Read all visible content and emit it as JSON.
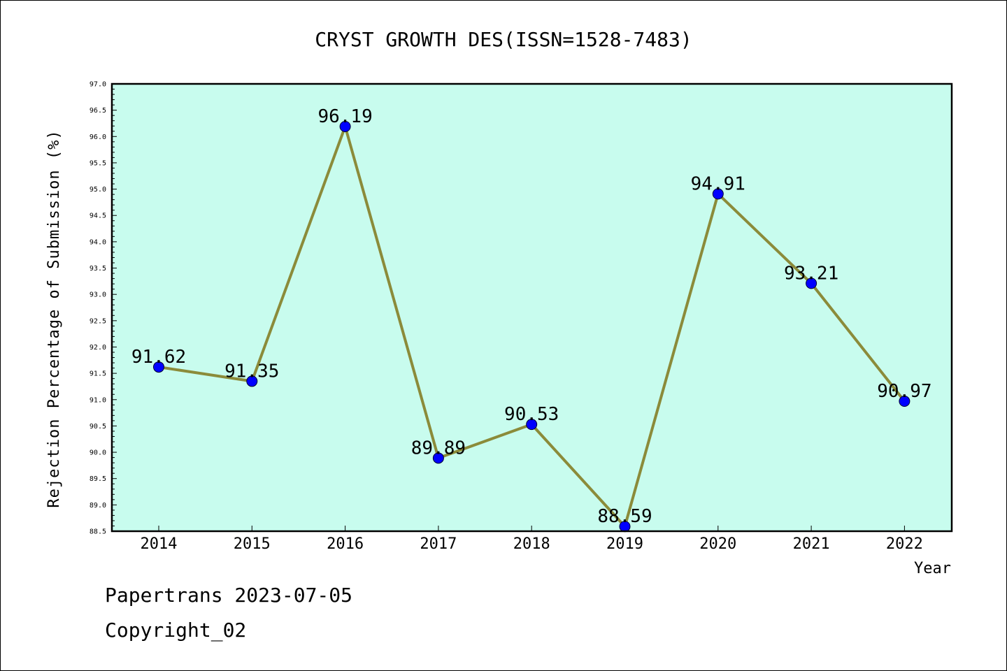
{
  "chart_data": {
    "type": "line",
    "title": "CRYST GROWTH DES(ISSN=1528-7483)",
    "xlabel": "Year",
    "ylabel": "Rejection Percentage of Submission (%)",
    "categories": [
      "2014",
      "2015",
      "2016",
      "2017",
      "2018",
      "2019",
      "2020",
      "2021",
      "2022"
    ],
    "values": [
      91.62,
      91.35,
      96.19,
      89.89,
      90.53,
      88.59,
      94.91,
      93.21,
      90.97
    ],
    "data_labels": [
      "91.62",
      "91.35",
      "96.19",
      "89.89",
      "90.53",
      "88.59",
      "94.91",
      "93.21",
      "90.97"
    ],
    "ylim": [
      88.5,
      97.0
    ],
    "yticks": [
      "88.5",
      "89.0",
      "89.5",
      "90.0",
      "90.5",
      "91.0",
      "91.5",
      "92.0",
      "92.5",
      "93.0",
      "93.5",
      "94.0",
      "94.5",
      "95.0",
      "95.5",
      "96.0",
      "96.5",
      "97.0"
    ],
    "grid": false,
    "colors": {
      "plot_background": "#c8fcee",
      "line": "#8b8b3a",
      "marker": "#0000ff"
    }
  },
  "footer": {
    "line1": "Papertrans 2023-07-05",
    "line2": "Copyright_02"
  }
}
